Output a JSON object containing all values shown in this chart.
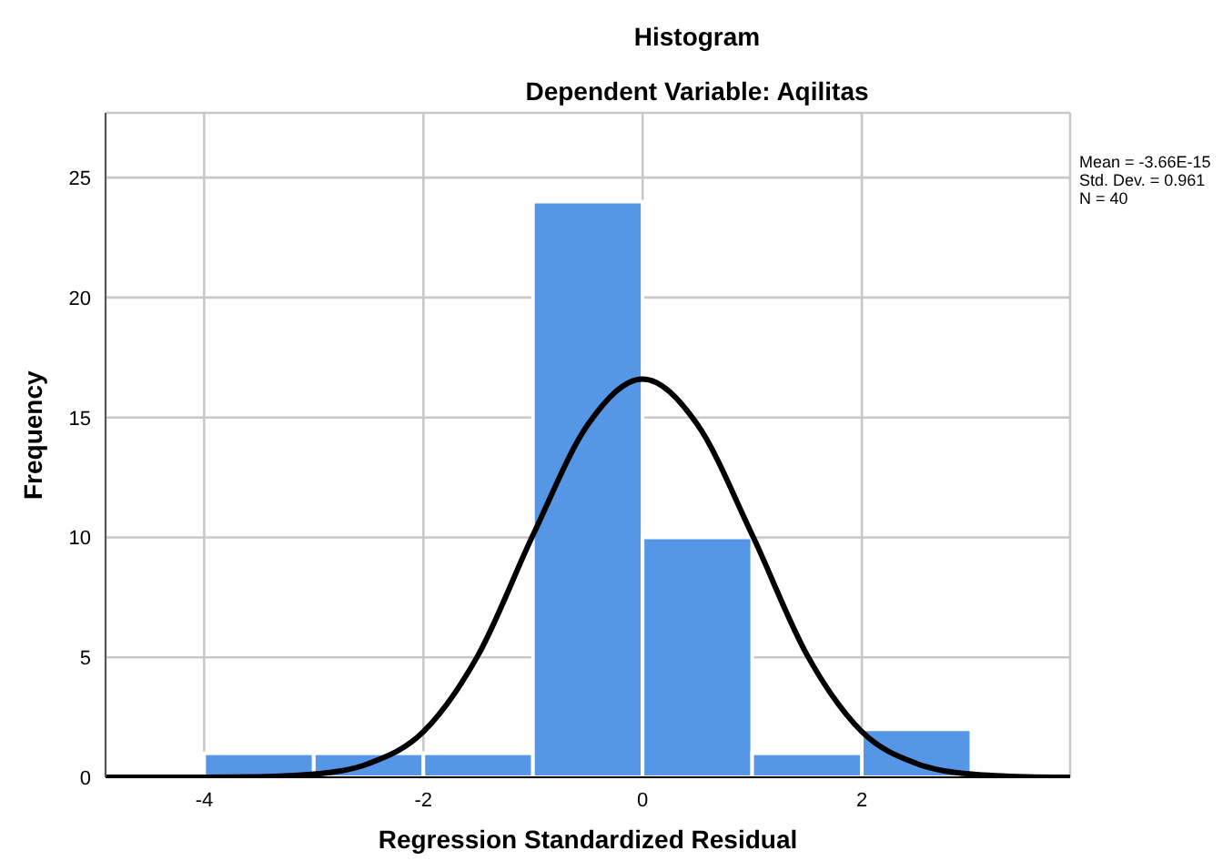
{
  "chart_data": {
    "type": "histogram",
    "title": "Histogram",
    "subtitle": "Dependent Variable: Aqilitas",
    "xlabel": "Regression Standardized Residual",
    "ylabel": "Frequency",
    "annotations": [
      "Mean = -3.66E-15",
      "Std. Dev. = 0.961",
      "N = 40"
    ],
    "bins": [
      -4,
      -3,
      -2,
      -1,
      0,
      1,
      2,
      3
    ],
    "values": [
      1,
      1,
      1,
      24,
      10,
      1,
      2
    ],
    "color": "#5596e6",
    "series": [
      {
        "type": "line",
        "color": "#000000",
        "x": [
          -4.9,
          -4,
          -3.5,
          -3,
          -2.5,
          -2,
          -1.5,
          -1,
          -0.5,
          0,
          0.5,
          1,
          1.5,
          2,
          2.5,
          3,
          3.5,
          3.9
        ],
        "values": [
          0,
          0,
          0.02,
          0.13,
          0.57,
          1.9,
          5.1,
          10.1,
          14.7,
          16.6,
          14.7,
          10.1,
          5.1,
          1.9,
          0.57,
          0.13,
          0.02,
          0
        ]
      }
    ],
    "xlim": [
      -4.9,
      3.9
    ],
    "xticks": [
      -4,
      -2,
      0,
      2
    ],
    "ylim": [
      0,
      27.7
    ],
    "yticks": [
      0,
      5,
      10,
      15,
      20,
      25
    ],
    "grid": true,
    "legend": false
  }
}
